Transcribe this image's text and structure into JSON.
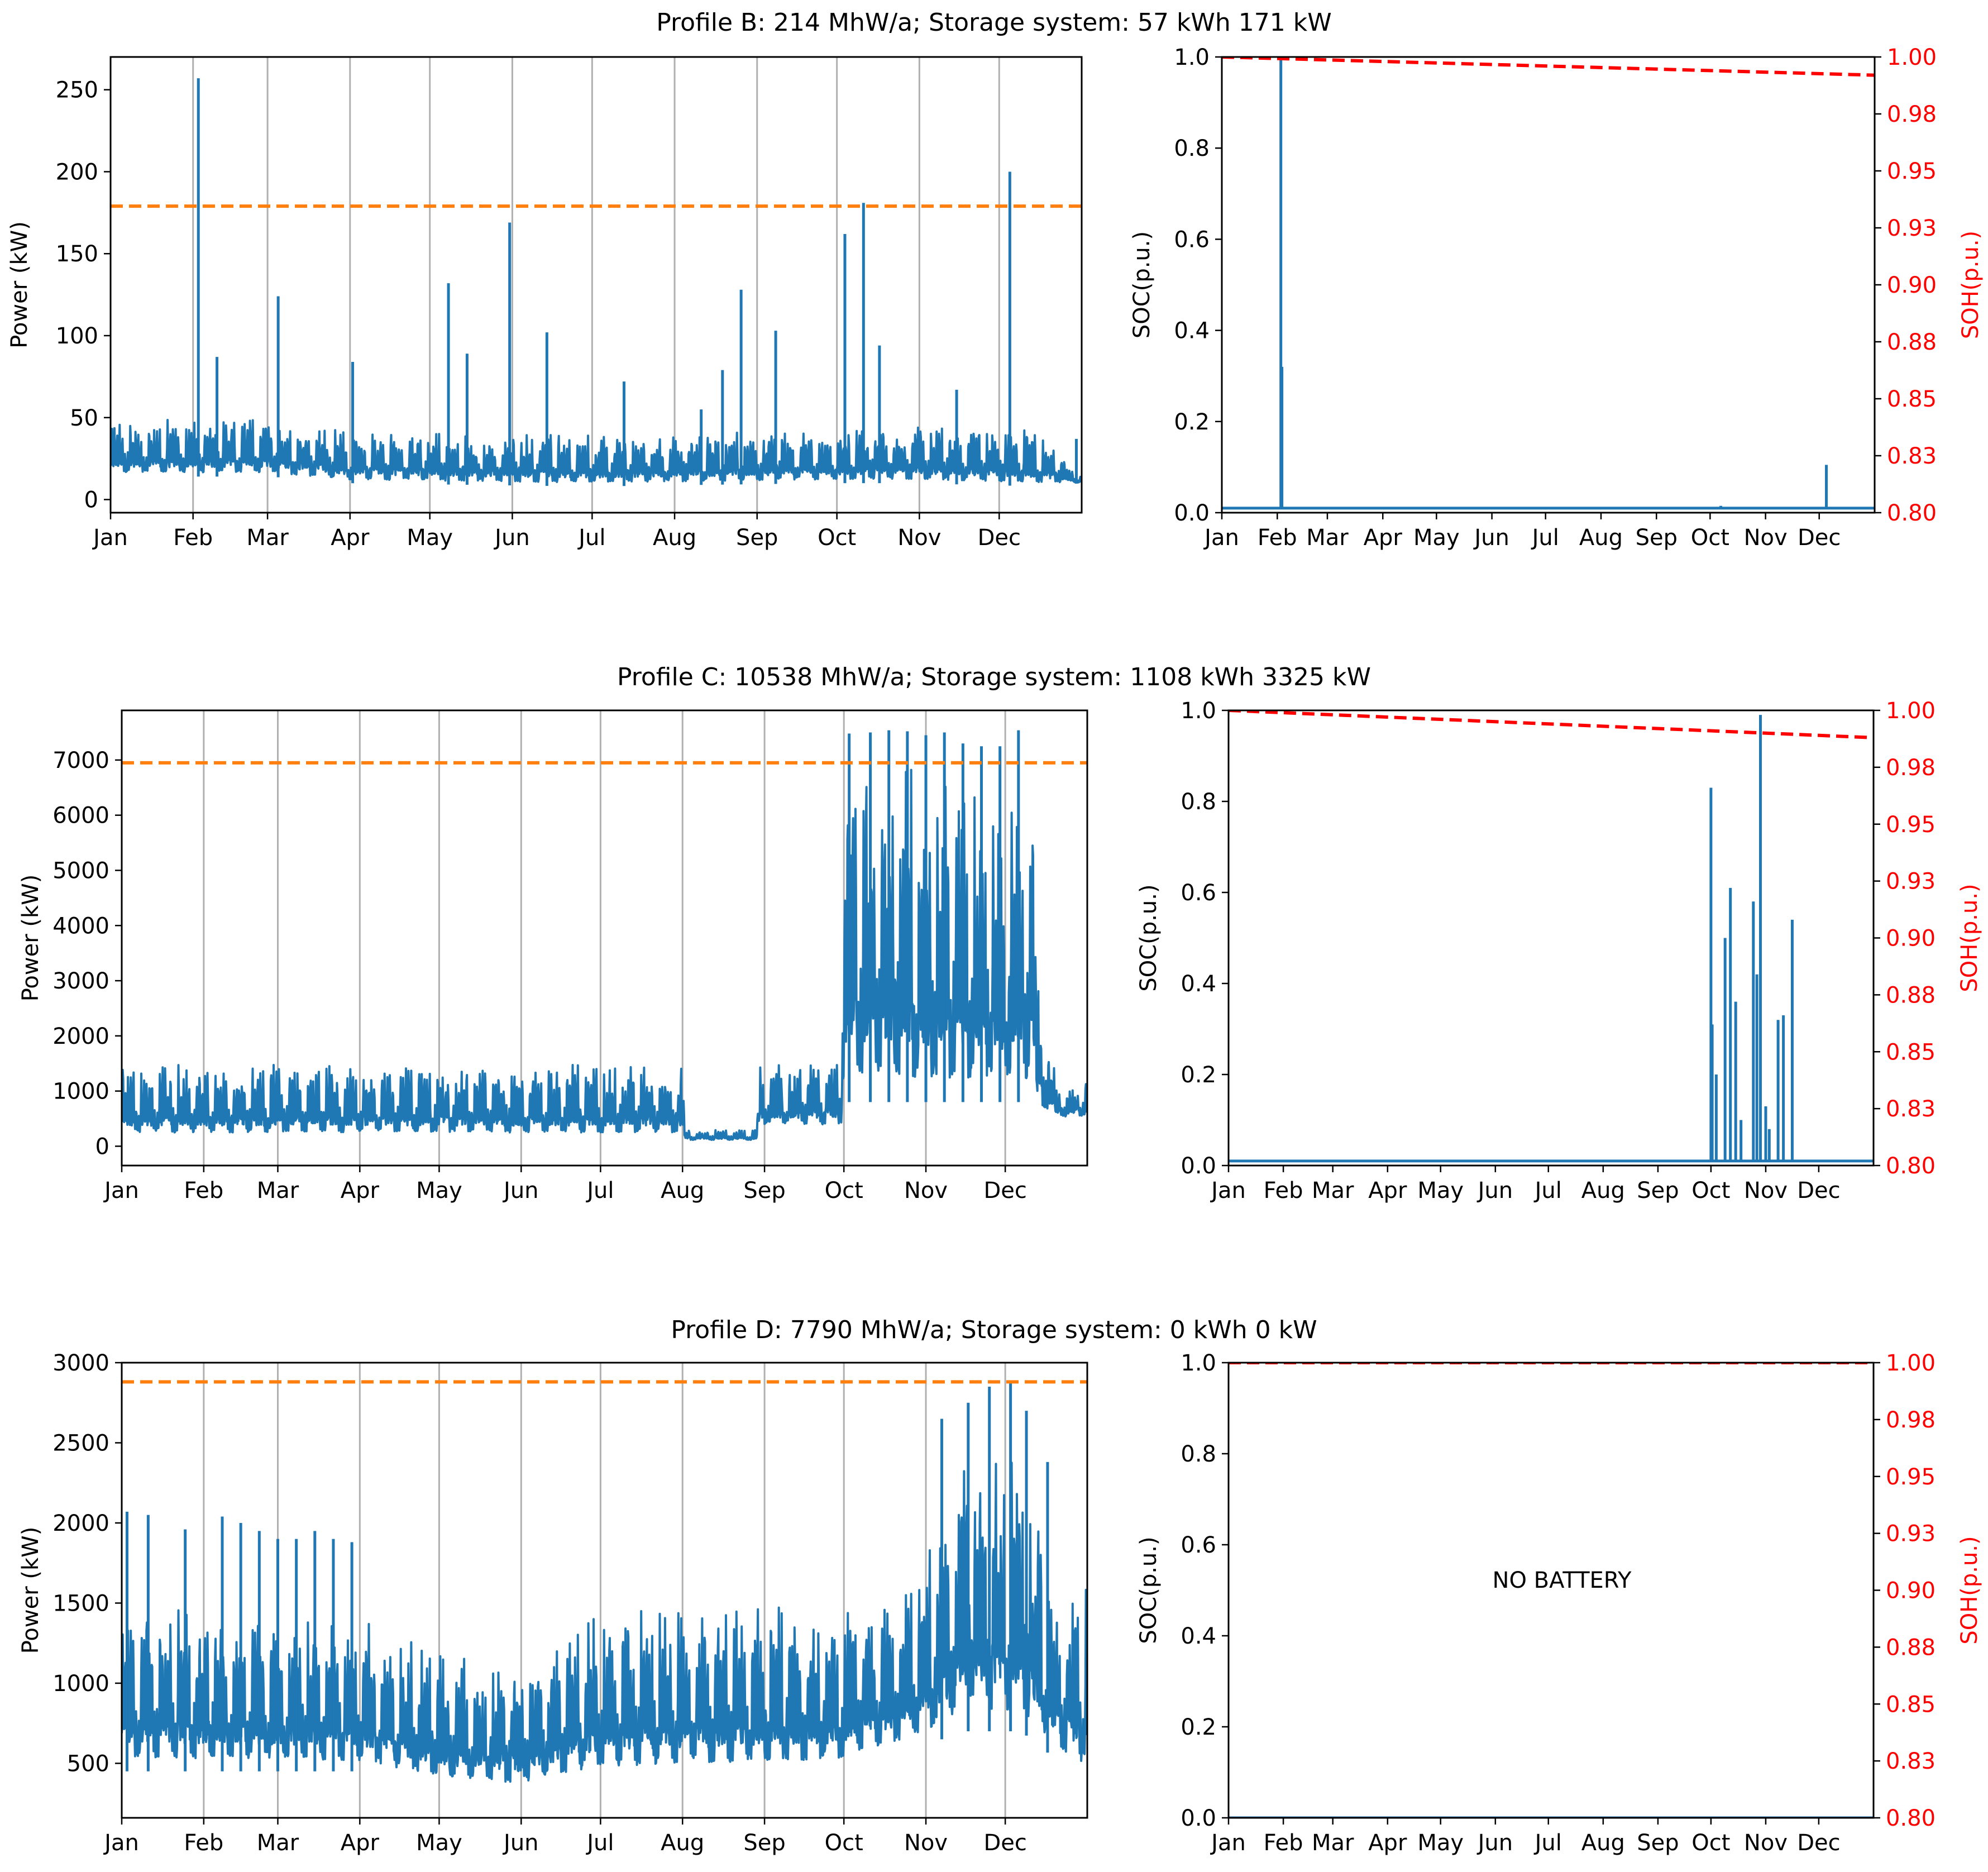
{
  "colors": {
    "power": "#1f77b4",
    "soc": "#1f77b4",
    "threshold": "#ff7f0e",
    "soh": "#ff0000",
    "grid": "#b0b0b0"
  },
  "months": [
    "Jan",
    "Feb",
    "Mar",
    "Apr",
    "May",
    "Jun",
    "Jul",
    "Aug",
    "Sep",
    "Oct",
    "Nov",
    "Dec"
  ],
  "month_start_days": [
    0,
    31,
    59,
    90,
    120,
    151,
    181,
    212,
    243,
    273,
    304,
    334
  ],
  "chart_data": [
    {
      "type": "line",
      "id": "B-power",
      "title": "Profile B: 214 MhW/a; Storage system: 57 kWh 171 kW",
      "ylabel": "Power (kW)",
      "xlim": [
        0,
        365
      ],
      "ylim": [
        -8,
        270
      ],
      "yticks": [
        0,
        50,
        100,
        150,
        200,
        250
      ],
      "ytick_labels": [
        "0",
        "50",
        "100",
        "150",
        "200",
        "250"
      ],
      "threshold": 179,
      "baseline": [
        {
          "d": 0,
          "lo": 14,
          "hi": 48
        },
        {
          "d": 60,
          "lo": 14,
          "hi": 50
        },
        {
          "d": 90,
          "lo": 10,
          "hi": 42
        },
        {
          "d": 180,
          "lo": 8,
          "hi": 40
        },
        {
          "d": 270,
          "lo": 10,
          "hi": 42
        },
        {
          "d": 300,
          "lo": 10,
          "hi": 46
        },
        {
          "d": 350,
          "lo": 8,
          "hi": 42
        },
        {
          "d": 365,
          "lo": 10,
          "hi": 14
        }
      ],
      "spikes": [
        {
          "d": 33,
          "v": 257
        },
        {
          "d": 40,
          "v": 87
        },
        {
          "d": 63,
          "v": 124
        },
        {
          "d": 91,
          "v": 84
        },
        {
          "d": 127,
          "v": 132
        },
        {
          "d": 134,
          "v": 89
        },
        {
          "d": 150,
          "v": 169
        },
        {
          "d": 164,
          "v": 102
        },
        {
          "d": 193,
          "v": 72
        },
        {
          "d": 222,
          "v": 55
        },
        {
          "d": 230,
          "v": 79
        },
        {
          "d": 237,
          "v": 128
        },
        {
          "d": 250,
          "v": 103
        },
        {
          "d": 276,
          "v": 162
        },
        {
          "d": 283,
          "v": 181
        },
        {
          "d": 289,
          "v": 94
        },
        {
          "d": 318,
          "v": 67
        },
        {
          "d": 338,
          "v": 200
        },
        {
          "d": 363,
          "v": 37
        }
      ]
    },
    {
      "type": "line",
      "id": "B-soc",
      "title": "",
      "ylabel": "SOC(p.u.)",
      "ylabel_right": "SOH(p.u.)",
      "xlim": [
        0,
        365
      ],
      "ylim": [
        0,
        1
      ],
      "yticks": [
        0,
        0.2,
        0.4,
        0.6,
        0.8,
        1.0
      ],
      "ytick_labels": [
        "0.0",
        "0.2",
        "0.4",
        "0.6",
        "0.8",
        "1.0"
      ],
      "ylim_right": [
        0.8,
        1.0
      ],
      "yticks_right": [
        0.8,
        0.825,
        0.85,
        0.875,
        0.9,
        0.925,
        0.95,
        0.975,
        1.0
      ],
      "ytick_labels_right": [
        "0.80",
        "0.83",
        "0.85",
        "0.88",
        "0.90",
        "0.93",
        "0.95",
        "0.98",
        "1.00"
      ],
      "soc_base": 0.01,
      "soc_spikes": [
        {
          "d": 33,
          "v": 1.0
        },
        {
          "d": 33.6,
          "v": 0.32
        },
        {
          "d": 279,
          "v": 0.015
        },
        {
          "d": 338,
          "v": 0.105
        }
      ],
      "soh_start": 1.0,
      "soh_end": 0.992
    },
    {
      "type": "line",
      "id": "C-power",
      "title": "Profile C: 10538 MhW/a; Storage system: 1108 kWh 3325 kW",
      "ylabel": "Power (kW)",
      "xlim": [
        0,
        365
      ],
      "ylim": [
        -350,
        7900
      ],
      "yticks": [
        0,
        1000,
        2000,
        3000,
        4000,
        5000,
        6000,
        7000
      ],
      "ytick_labels": [
        "0",
        "1000",
        "2000",
        "3000",
        "4000",
        "5000",
        "6000",
        "7000"
      ],
      "threshold": 6950,
      "baseline": [
        {
          "d": 0,
          "lo": 150,
          "hi": 1500
        },
        {
          "d": 212,
          "lo": 150,
          "hi": 1500
        },
        {
          "d": 213,
          "lo": 100,
          "hi": 300
        },
        {
          "d": 240,
          "lo": 100,
          "hi": 300
        },
        {
          "d": 241,
          "lo": 300,
          "hi": 1500
        },
        {
          "d": 272,
          "lo": 300,
          "hi": 1600
        },
        {
          "d": 273,
          "lo": 800,
          "hi": 7200
        },
        {
          "d": 345,
          "lo": 800,
          "hi": 6500
        },
        {
          "d": 346,
          "lo": 500,
          "hi": 3300
        },
        {
          "d": 354,
          "lo": 500,
          "hi": 1000
        },
        {
          "d": 365,
          "lo": 500,
          "hi": 1200
        }
      ],
      "spikes": [
        {
          "d": 275,
          "v": 7480
        },
        {
          "d": 283,
          "v": 7500
        },
        {
          "d": 290,
          "v": 7540
        },
        {
          "d": 297,
          "v": 7520
        },
        {
          "d": 304,
          "v": 7450
        },
        {
          "d": 311,
          "v": 7500
        },
        {
          "d": 318,
          "v": 7300
        },
        {
          "d": 325,
          "v": 7250
        },
        {
          "d": 332,
          "v": 7250
        },
        {
          "d": 339,
          "v": 7540
        }
      ]
    },
    {
      "type": "line",
      "id": "C-soc",
      "title": "",
      "ylabel": "SOC(p.u.)",
      "ylabel_right": "SOH(p.u.)",
      "xlim": [
        0,
        365
      ],
      "ylim": [
        0,
        1
      ],
      "yticks": [
        0,
        0.2,
        0.4,
        0.6,
        0.8,
        1.0
      ],
      "ytick_labels": [
        "0.0",
        "0.2",
        "0.4",
        "0.6",
        "0.8",
        "1.0"
      ],
      "ylim_right": [
        0.8,
        1.0
      ],
      "yticks_right": [
        0.8,
        0.825,
        0.85,
        0.875,
        0.9,
        0.925,
        0.95,
        0.975,
        1.0
      ],
      "ytick_labels_right": [
        "0.80",
        "0.83",
        "0.85",
        "0.88",
        "0.90",
        "0.93",
        "0.95",
        "0.98",
        "1.00"
      ],
      "soc_base": 0.01,
      "soc_spikes": [
        {
          "d": 273,
          "v": 0.83
        },
        {
          "d": 273.7,
          "v": 0.31
        },
        {
          "d": 276,
          "v": 0.2
        },
        {
          "d": 281,
          "v": 0.5
        },
        {
          "d": 284,
          "v": 0.61
        },
        {
          "d": 287,
          "v": 0.36
        },
        {
          "d": 290,
          "v": 0.1
        },
        {
          "d": 297,
          "v": 0.58
        },
        {
          "d": 299,
          "v": 0.42
        },
        {
          "d": 301,
          "v": 0.99
        },
        {
          "d": 304,
          "v": 0.13
        },
        {
          "d": 306,
          "v": 0.08
        },
        {
          "d": 311,
          "v": 0.32
        },
        {
          "d": 314,
          "v": 0.33
        },
        {
          "d": 319,
          "v": 0.54
        }
      ],
      "soh_start": 1.0,
      "soh_end": 0.988
    },
    {
      "type": "line",
      "id": "D-power",
      "title": "Profile D: 7790 MhW/a; Storage system: 0 kWh 0 kW",
      "ylabel": "Power (kW)",
      "xlim": [
        0,
        365
      ],
      "ylim": [
        160,
        3000
      ],
      "yticks": [
        500,
        1000,
        1500,
        2000,
        2500,
        3000
      ],
      "ytick_labels": [
        "500",
        "1000",
        "1500",
        "2000",
        "2500",
        "3000"
      ],
      "threshold": 2880,
      "baseline": [
        {
          "d": 0,
          "lo": 450,
          "hi": 1550
        },
        {
          "d": 90,
          "lo": 450,
          "hi": 1400
        },
        {
          "d": 120,
          "lo": 350,
          "hi": 1200
        },
        {
          "d": 150,
          "lo": 320,
          "hi": 1100
        },
        {
          "d": 180,
          "lo": 400,
          "hi": 1500
        },
        {
          "d": 270,
          "lo": 450,
          "hi": 1500
        },
        {
          "d": 300,
          "lo": 600,
          "hi": 1600
        },
        {
          "d": 320,
          "lo": 700,
          "hi": 2500
        },
        {
          "d": 340,
          "lo": 700,
          "hi": 2500
        },
        {
          "d": 355,
          "lo": 500,
          "hi": 1500
        },
        {
          "d": 365,
          "lo": 400,
          "hi": 1700
        }
      ],
      "spikes": [
        {
          "d": 2,
          "v": 2070
        },
        {
          "d": 10,
          "v": 2050
        },
        {
          "d": 24,
          "v": 1960
        },
        {
          "d": 38,
          "v": 2040
        },
        {
          "d": 45,
          "v": 2000
        },
        {
          "d": 52,
          "v": 1950
        },
        {
          "d": 59,
          "v": 1900
        },
        {
          "d": 66,
          "v": 1900
        },
        {
          "d": 73,
          "v": 1950
        },
        {
          "d": 80,
          "v": 1900
        },
        {
          "d": 87,
          "v": 1880
        },
        {
          "d": 310,
          "v": 2650
        },
        {
          "d": 320,
          "v": 2750
        },
        {
          "d": 328,
          "v": 2850
        },
        {
          "d": 336,
          "v": 2880
        },
        {
          "d": 342,
          "v": 2700
        },
        {
          "d": 350,
          "v": 2380
        }
      ]
    },
    {
      "type": "line",
      "id": "D-soc",
      "title": "",
      "ylabel": "SOC(p.u.)",
      "ylabel_right": "SOH(p.u.)",
      "xlim": [
        0,
        365
      ],
      "ylim": [
        0,
        1
      ],
      "yticks": [
        0,
        0.2,
        0.4,
        0.6,
        0.8,
        1.0
      ],
      "ytick_labels": [
        "0.0",
        "0.2",
        "0.4",
        "0.6",
        "0.8",
        "1.0"
      ],
      "ylim_right": [
        0.8,
        1.0
      ],
      "yticks_right": [
        0.8,
        0.825,
        0.85,
        0.875,
        0.9,
        0.925,
        0.95,
        0.975,
        1.0
      ],
      "ytick_labels_right": [
        "0.80",
        "0.83",
        "0.85",
        "0.88",
        "0.90",
        "0.93",
        "0.95",
        "0.98",
        "1.00"
      ],
      "soc_base": 0.0,
      "soc_spikes": [],
      "soh_start": 1.0,
      "soh_end": 1.0,
      "annotation": "NO BATTERY"
    }
  ]
}
